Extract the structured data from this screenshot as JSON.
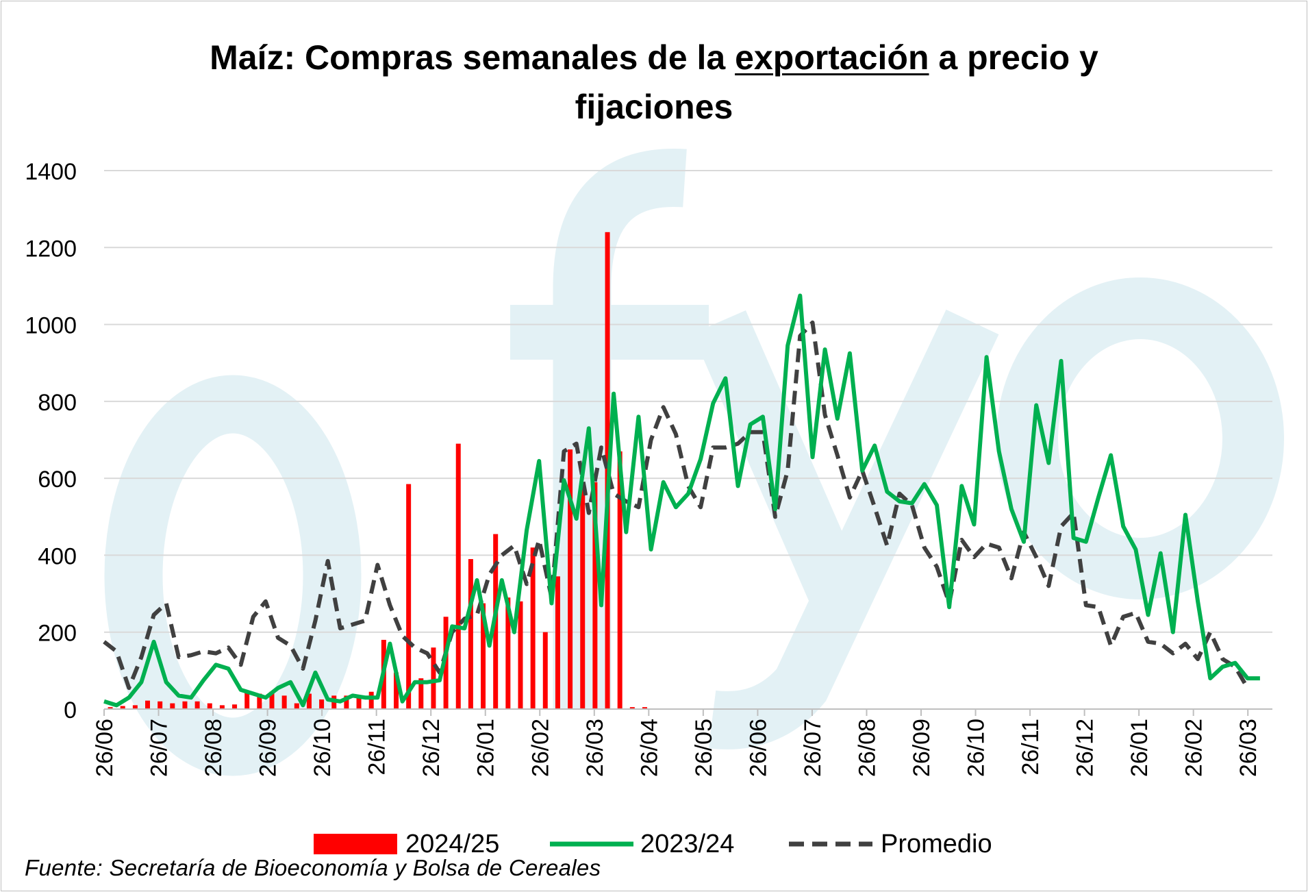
{
  "chart_data": {
    "type": "bar+line",
    "title_parts": [
      "Maíz: Compras semanales de la ",
      "exportación",
      " a precio y",
      "fijaciones"
    ],
    "ylim": [
      0,
      1400
    ],
    "yticks": [
      0,
      200,
      400,
      600,
      800,
      1000,
      1200,
      1400
    ],
    "xticks": [
      "26/06",
      "26/07",
      "26/08",
      "26/09",
      "26/10",
      "26/11",
      "26/12",
      "26/01",
      "26/02",
      "26/03",
      "26/04",
      "26/05",
      "26/06",
      "26/07",
      "26/08",
      "26/09",
      "26/10",
      "26/11",
      "26/12",
      "26/01",
      "26/02",
      "26/03"
    ],
    "weeks_total": 44,
    "weeks_per_tick": 4.3,
    "grid": true,
    "legend_position": "bottom",
    "watermark": "ofyo",
    "series": [
      {
        "name": "2024/25",
        "type": "bar",
        "color": "#ff0000",
        "values": [
          5,
          8,
          10,
          22,
          20,
          15,
          20,
          20,
          15,
          10,
          12,
          45,
          40,
          45,
          35,
          15,
          40,
          25,
          35,
          35,
          30,
          45,
          180,
          95,
          585,
          80,
          160,
          240,
          690,
          390,
          275,
          455,
          290,
          280,
          420,
          200,
          345,
          675,
          590,
          590,
          1240,
          670,
          5,
          5
        ]
      },
      {
        "name": "2023/24",
        "type": "line",
        "color": "#00b050",
        "values": [
          20,
          10,
          30,
          70,
          175,
          70,
          35,
          30,
          75,
          115,
          105,
          50,
          40,
          30,
          55,
          70,
          10,
          95,
          25,
          20,
          35,
          30,
          30,
          170,
          20,
          70,
          70,
          75,
          215,
          210,
          335,
          165,
          335,
          200,
          465,
          645,
          275,
          595,
          495,
          730,
          270,
          820,
          460,
          760,
          415,
          590,
          525,
          560,
          650,
          795,
          860,
          580,
          740,
          760,
          520,
          945,
          1075,
          655,
          935,
          755,
          925,
          620,
          685,
          565,
          540,
          535,
          585,
          530,
          265,
          580,
          480,
          915,
          670,
          520,
          435,
          790,
          640,
          905,
          445,
          435,
          550,
          660,
          475,
          415,
          245,
          405,
          200,
          505,
          280,
          80,
          110,
          120,
          80,
          80
        ]
      },
      {
        "name": "Promedio",
        "type": "line-dashed",
        "color": "#404040",
        "values": [
          175,
          150,
          55,
          135,
          245,
          275,
          135,
          140,
          150,
          145,
          160,
          115,
          240,
          280,
          185,
          165,
          105,
          230,
          385,
          210,
          220,
          230,
          375,
          270,
          190,
          160,
          145,
          95,
          200,
          235,
          245,
          350,
          400,
          425,
          325,
          440,
          290,
          670,
          690,
          510,
          680,
          560,
          540,
          525,
          700,
          785,
          715,
          580,
          525,
          680,
          680,
          690,
          720,
          720,
          500,
          620,
          970,
          1005,
          765,
          660,
          550,
          620,
          525,
          425,
          560,
          530,
          420,
          370,
          275,
          440,
          395,
          430,
          420,
          340,
          460,
          395,
          320,
          475,
          510,
          270,
          265,
          165,
          240,
          250,
          175,
          170,
          145,
          170,
          130,
          200,
          130,
          110,
          55
        ]
      }
    ],
    "source": "Fuente: Secretaría de Bioeconomía y Bolsa de Cereales"
  }
}
